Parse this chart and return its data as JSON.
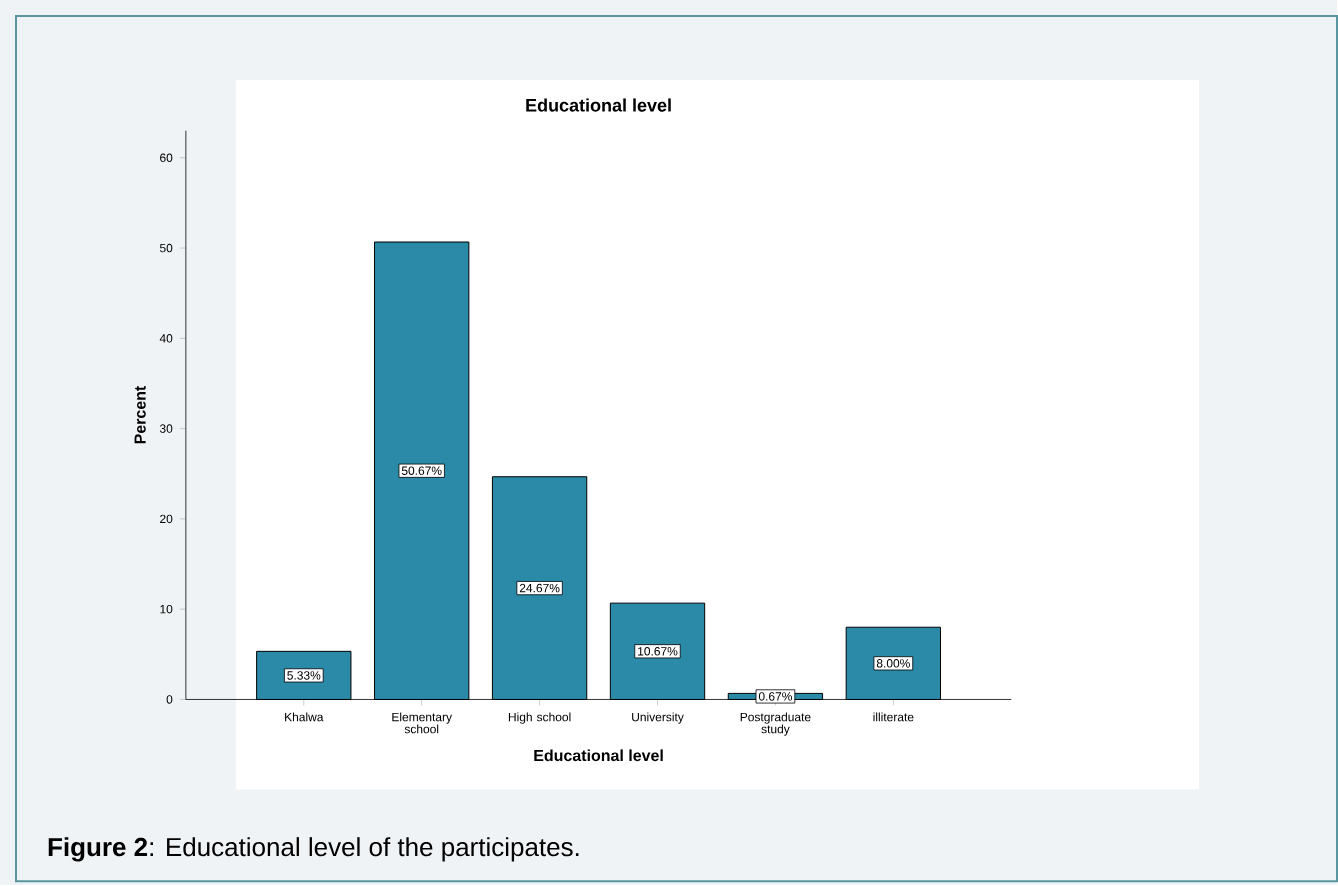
{
  "chart_data": {
    "type": "bar",
    "title": "Educational level",
    "xlabel": "Educational level",
    "ylabel": "Percent",
    "categories": [
      "Khalwa",
      "Elementary school",
      "High school",
      "University",
      "Postgraduate study",
      "illiterate"
    ],
    "values": [
      5.33,
      50.67,
      24.67,
      10.67,
      0.67,
      8.0
    ],
    "value_labels": [
      "5.33%",
      "50.67%",
      "24.67%",
      "10.67%",
      "0.67%",
      "8.00%"
    ],
    "color": "#2b8aa8",
    "ylim": [
      0,
      63
    ],
    "yticks": [
      0,
      10,
      20,
      30,
      40,
      50,
      60
    ],
    "annotations": [
      "**Figure 2**: Educational level of the participates."
    ]
  }
}
